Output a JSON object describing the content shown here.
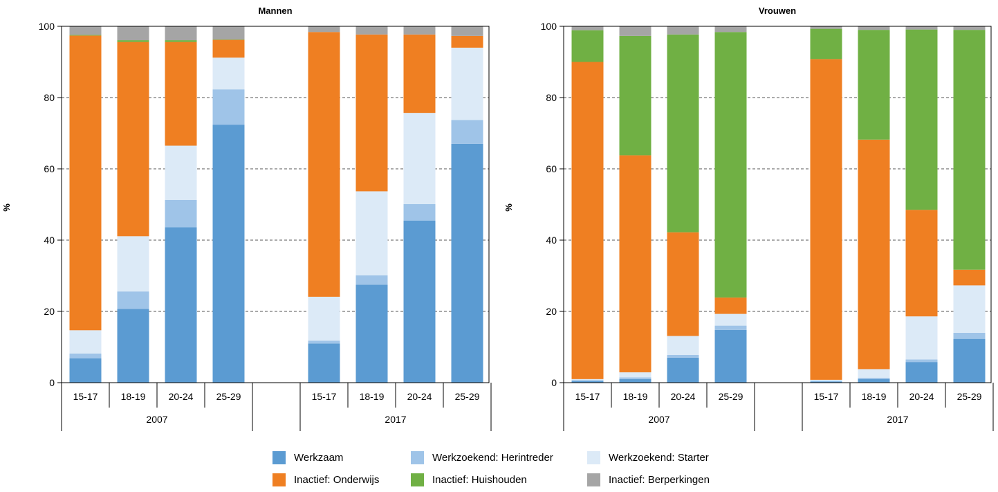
{
  "chart_data": [
    {
      "type": "bar",
      "stacked": true,
      "title": "Mannen",
      "ylabel": "%",
      "ylim": [
        0,
        100
      ],
      "yticks": [
        0,
        20,
        40,
        60,
        80,
        100
      ],
      "grid": "horizontal dashed",
      "groups": [
        {
          "label": "2007",
          "categories": [
            "15-17",
            "18-19",
            "20-24",
            "25-29"
          ]
        },
        {
          "label": "2017",
          "categories": [
            "15-17",
            "18-19",
            "20-24",
            "25-29"
          ]
        }
      ],
      "series": [
        {
          "name": "Werkzaam",
          "values": [
            6.8,
            20.7,
            43.6,
            72.4,
            11.0,
            27.5,
            45.5,
            67.0
          ]
        },
        {
          "name": "Werkzoekend: Herintreder",
          "values": [
            1.4,
            4.9,
            7.7,
            9.9,
            0.8,
            2.6,
            4.6,
            6.7
          ]
        },
        {
          "name": "Werkzoekend: Starter",
          "values": [
            6.5,
            15.5,
            15.2,
            8.9,
            12.3,
            23.6,
            25.6,
            20.3
          ]
        },
        {
          "name": "Inactief: Onderwijs",
          "values": [
            82.7,
            54.5,
            29.1,
            5.0,
            74.3,
            44.0,
            22.0,
            3.3
          ]
        },
        {
          "name": "Inactief: Huishouden",
          "values": [
            0.2,
            0.5,
            0.5,
            0.1,
            0.0,
            0.0,
            0.0,
            0.0
          ]
        },
        {
          "name": "Inactief: Berperkingen",
          "values": [
            2.4,
            3.9,
            3.9,
            3.7,
            1.6,
            2.3,
            2.3,
            2.7
          ]
        }
      ]
    },
    {
      "type": "bar",
      "stacked": true,
      "title": "Vrouwen",
      "ylabel": "%",
      "ylim": [
        0,
        100
      ],
      "yticks": [
        0,
        20,
        40,
        60,
        80,
        100
      ],
      "grid": "horizontal dashed",
      "groups": [
        {
          "label": "2007",
          "categories": [
            "15-17",
            "18-19",
            "20-24",
            "25-29"
          ]
        },
        {
          "label": "2017",
          "categories": [
            "15-17",
            "18-19",
            "20-24",
            "25-29"
          ]
        }
      ],
      "series": [
        {
          "name": "Werkzaam",
          "values": [
            0.5,
            1.0,
            7.0,
            14.8,
            0.3,
            1.0,
            5.8,
            12.3
          ]
        },
        {
          "name": "Werkzoekend: Herintreder",
          "values": [
            0.2,
            0.5,
            0.8,
            1.2,
            0.2,
            0.4,
            0.7,
            1.7
          ]
        },
        {
          "name": "Werkzoekend: Starter",
          "values": [
            0.3,
            1.4,
            5.3,
            3.3,
            0.3,
            2.4,
            12.1,
            13.3
          ]
        },
        {
          "name": "Inactief: Onderwijs",
          "values": [
            89.0,
            60.9,
            29.1,
            4.6,
            90.0,
            64.4,
            29.9,
            4.4
          ]
        },
        {
          "name": "Inactief: Huishouden",
          "values": [
            8.9,
            33.5,
            55.5,
            74.5,
            8.5,
            30.8,
            50.6,
            67.3
          ]
        },
        {
          "name": "Inactief: Berperkingen",
          "values": [
            1.1,
            2.7,
            2.3,
            1.6,
            0.7,
            1.0,
            0.9,
            1.0
          ]
        }
      ]
    }
  ],
  "colors": {
    "Werkzaam": "#5b9bd2",
    "Werkzoekend: Herintreder": "#9fc4e8",
    "Werkzoekend: Starter": "#dceaf7",
    "Inactief: Onderwijs": "#ef7f22",
    "Inactief: Huishouden": "#70b044",
    "Inactief: Berperkingen": "#a5a5a5"
  },
  "legend": [
    {
      "label": "Werkzaam",
      "color": "#5b9bd2"
    },
    {
      "label": "Werkzoekend: Herintreder",
      "color": "#9fc4e8"
    },
    {
      "label": "Werkzoekend: Starter",
      "color": "#dceaf7"
    },
    {
      "label": "Inactief: Onderwijs",
      "color": "#ef7f22"
    },
    {
      "label": "Inactief: Huishouden",
      "color": "#70b044"
    },
    {
      "label": "Inactief: Berperkingen",
      "color": "#a5a5a5"
    }
  ]
}
